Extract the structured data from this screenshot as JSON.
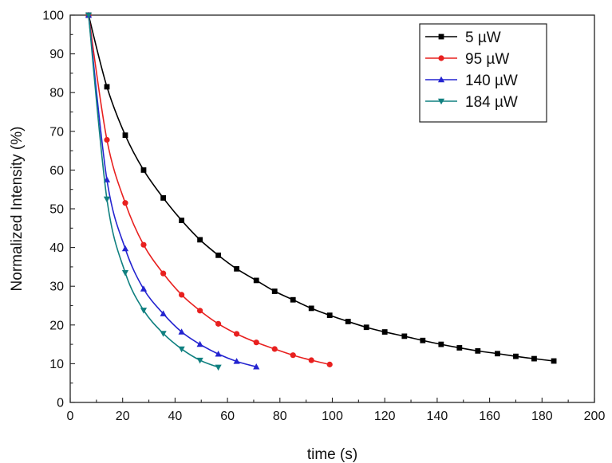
{
  "chart_data": {
    "type": "line",
    "xlabel": "time (s)",
    "ylabel": "Normalized Intensity (%)",
    "xlim": [
      0,
      200
    ],
    "ylim": [
      0,
      100
    ],
    "xticks": [
      "0",
      "20",
      "40",
      "60",
      "80",
      "100",
      "120",
      "140",
      "160",
      "180",
      "200"
    ],
    "yticks": [
      "0",
      "10",
      "20",
      "30",
      "40",
      "50",
      "60",
      "70",
      "80",
      "90",
      "100"
    ],
    "legend_position": "top-right",
    "series": [
      {
        "name": "5 µW",
        "color": "#000000",
        "marker": "square",
        "x": [
          7,
          14,
          21,
          28,
          35.5,
          42.5,
          49.5,
          56.5,
          63.5,
          71,
          78,
          85,
          92,
          99,
          106,
          113,
          120,
          127.5,
          134.5,
          141.5,
          148.5,
          155.5,
          163,
          170,
          177,
          184.5
        ],
        "y": [
          100,
          81.5,
          69,
          60,
          52.8,
          47,
          42,
          38,
          34.5,
          31.5,
          28.7,
          26.5,
          24.3,
          22.5,
          20.9,
          19.4,
          18.2,
          17.1,
          16,
          15,
          14.1,
          13.3,
          12.6,
          11.9,
          11.3,
          10.7
        ]
      },
      {
        "name": "95 µW",
        "color": "#e8201f",
        "marker": "circle",
        "x": [
          7,
          14,
          21,
          28,
          35.5,
          42.5,
          49.5,
          56.5,
          63.5,
          71,
          78,
          85,
          92,
          99
        ],
        "y": [
          100,
          67.8,
          51.5,
          40.7,
          33.3,
          27.8,
          23.7,
          20.3,
          17.7,
          15.5,
          13.8,
          12.2,
          10.9,
          9.8
        ]
      },
      {
        "name": "140 µW",
        "color": "#2424d0",
        "marker": "triangle-up",
        "x": [
          7,
          14,
          21,
          28,
          35.5,
          42.5,
          49.5,
          56.5,
          63.5,
          71
        ],
        "y": [
          100,
          57.5,
          39.7,
          29.3,
          22.9,
          18.2,
          15,
          12.5,
          10.6,
          9.2
        ]
      },
      {
        "name": "184 µW",
        "color": "#108080",
        "marker": "triangle-down",
        "x": [
          7,
          14,
          21,
          28,
          35.5,
          42.5,
          49.5,
          56.5
        ],
        "y": [
          100,
          52.5,
          33.5,
          23.8,
          17.8,
          13.8,
          10.9,
          9.1
        ]
      }
    ]
  }
}
